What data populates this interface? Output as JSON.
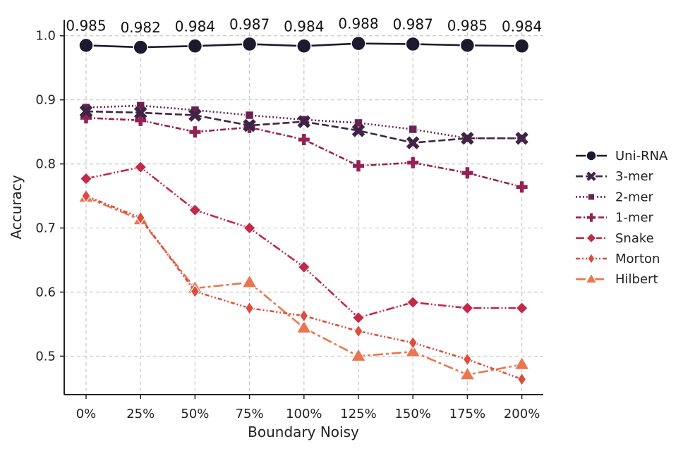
{
  "chart_data": {
    "type": "line",
    "title": "",
    "xlabel": "Boundary Noisy",
    "ylabel": "Accuracy",
    "categories": [
      "0%",
      "25%",
      "50%",
      "75%",
      "100%",
      "125%",
      "150%",
      "175%",
      "200%"
    ],
    "ylim": [
      0.44,
      1.025
    ],
    "yticks": [
      0.5,
      0.6,
      0.7,
      0.8,
      0.9,
      1.0
    ],
    "ytick_labels": [
      "0.5",
      "0.6",
      "0.7",
      "0.8",
      "0.9",
      "1.0"
    ],
    "grid": true,
    "legend_position": "right",
    "series": [
      {
        "name": "Uni-RNA",
        "color": "#1e1a2e",
        "dash": "solid",
        "marker": "circle",
        "values": [
          0.985,
          0.982,
          0.984,
          0.987,
          0.984,
          0.988,
          0.987,
          0.985,
          0.984
        ],
        "data_labels": [
          "0.985",
          "0.982",
          "0.984",
          "0.987",
          "0.984",
          "0.988",
          "0.987",
          "0.985",
          "0.984"
        ]
      },
      {
        "name": "3-mer",
        "color": "#3f2445",
        "dash": "dashed",
        "marker": "x",
        "values": [
          0.882,
          0.88,
          0.876,
          0.86,
          0.866,
          0.852,
          0.833,
          0.84,
          0.84
        ]
      },
      {
        "name": "2-mer",
        "color": "#6b2253",
        "dash": "dotted",
        "marker": "square",
        "values": [
          0.888,
          0.891,
          0.884,
          0.876,
          0.869,
          0.864,
          0.854,
          0.84,
          0.84
        ]
      },
      {
        "name": "1-mer",
        "color": "#962151",
        "dash": "dashdot",
        "marker": "plus",
        "values": [
          0.872,
          0.868,
          0.85,
          0.857,
          0.838,
          0.797,
          0.802,
          0.786,
          0.764
        ]
      },
      {
        "name": "Snake",
        "color": "#c12a48",
        "dash": "dashdotdot",
        "marker": "diamond",
        "values": [
          0.777,
          0.795,
          0.728,
          0.7,
          0.639,
          0.56,
          0.584,
          0.575,
          0.575
        ]
      },
      {
        "name": "Morton",
        "color": "#dd4d3f",
        "dash": "dashdotdot2",
        "marker": "thin-diamond",
        "values": [
          0.75,
          0.716,
          0.601,
          0.575,
          0.563,
          0.539,
          0.521,
          0.495,
          0.464
        ]
      },
      {
        "name": "Hilbert",
        "color": "#e8774f",
        "dash": "longdash",
        "marker": "triangle",
        "values": [
          0.748,
          0.713,
          0.606,
          0.615,
          0.544,
          0.5,
          0.507,
          0.471,
          0.487
        ]
      }
    ]
  }
}
